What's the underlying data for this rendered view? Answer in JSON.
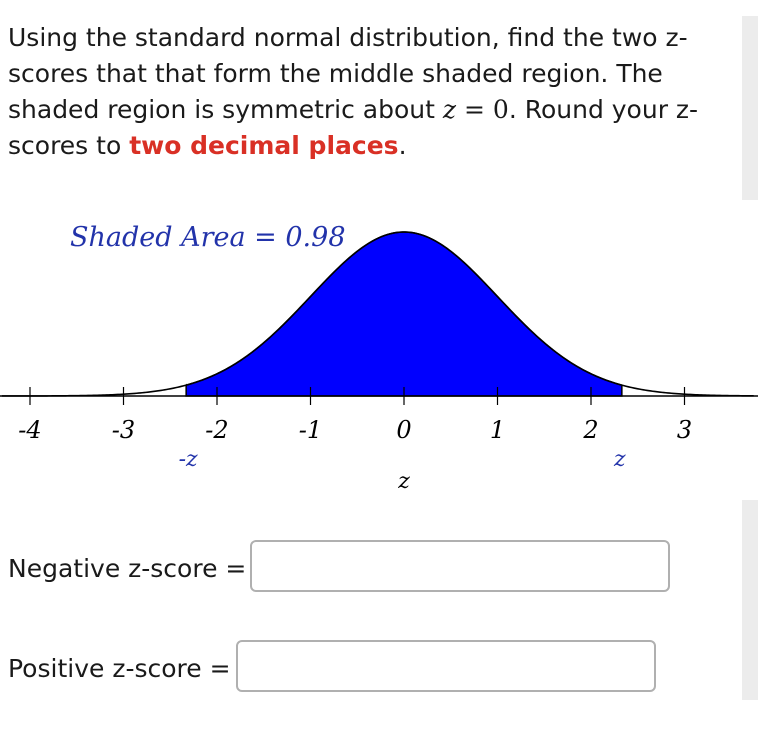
{
  "question": {
    "part1": "Using the standard normal distribution, find the two z-scores that that form the middle shaded region. The shaded region is symmetric about ",
    "math_var": "z",
    "math_eq": " = 0",
    "part2": ". Round your z-scores to ",
    "highlight": "two decimal places",
    "part3": "."
  },
  "chart_data": {
    "type": "area",
    "distribution": "standard normal",
    "annotation": "Shaded Area = 0.98",
    "shaded_area": 0.98,
    "shade_range": [
      -2.33,
      2.33
    ],
    "xlim": [
      -4,
      3.7
    ],
    "x_ticks": [
      -4,
      -3,
      -2,
      -1,
      0,
      1,
      2,
      3
    ],
    "x_tick_labels": [
      "-4",
      "-3",
      "-2",
      "-1",
      "0",
      "1",
      "2",
      "3"
    ],
    "neg_z_label": "-z",
    "pos_z_label": "z",
    "axis_label": "z",
    "fill_color": "#0000ff",
    "annotation_color": "#2233aa"
  },
  "form": {
    "negative_label": "Negative z-score =",
    "positive_label": "Positive z-score =",
    "negative_value": "",
    "positive_value": ""
  }
}
